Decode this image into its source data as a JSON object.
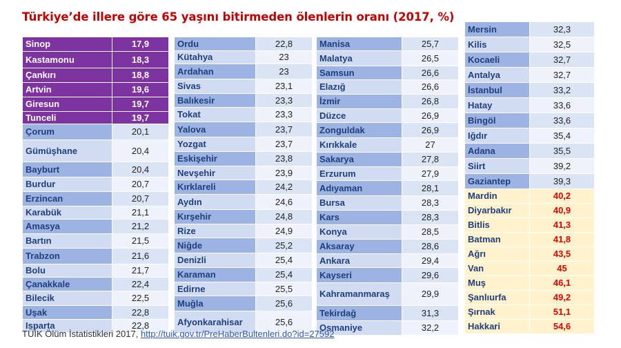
{
  "title": "Türkiye’de illere göre 65 yaşını bitirmeden ölenlerin oranı (2017, %)",
  "source": {
    "prefix": "TÜİK Ölüm İstatistikleri 2017,",
    "link": "http://tuik.gov.tr/PreHaberBultenleri.do?id=27592"
  },
  "colors": {
    "lowest_highlight": "#7d33a0",
    "highest_highlight": "#fff2cc",
    "highest_value_text": "#e00000",
    "name_cell": "#9db3e1",
    "title": "#c00000"
  },
  "columns": [
    {
      "rows": [
        {
          "name": "Sinop",
          "value": "17,9",
          "group": "low"
        },
        {
          "name": "Kastamonu",
          "value": "18,3",
          "group": "low"
        },
        {
          "name": "Çankırı",
          "value": "18,8",
          "group": "low"
        },
        {
          "name": "Artvin",
          "value": "19,6",
          "group": "low"
        },
        {
          "name": "Giresun",
          "value": "19,7",
          "group": "low"
        },
        {
          "name": "Tunceli",
          "value": "19,7",
          "group": "low"
        },
        {
          "name": "Çorum",
          "value": "20,1",
          "group": "mid"
        },
        {
          "name": "Gümüşhane",
          "value": "20,4",
          "group": "mid"
        },
        {
          "name": "Bayburt",
          "value": "20,4",
          "group": "mid"
        },
        {
          "name": "Burdur",
          "value": "20,7",
          "group": "mid"
        },
        {
          "name": "Erzincan",
          "value": "20,7",
          "group": "mid"
        },
        {
          "name": "Karabük",
          "value": "21,1",
          "group": "mid"
        },
        {
          "name": "Amasya",
          "value": "21,2",
          "group": "mid"
        },
        {
          "name": "Bartın",
          "value": "21,5",
          "group": "mid"
        },
        {
          "name": "Trabzon",
          "value": "21,6",
          "group": "mid"
        },
        {
          "name": "Bolu",
          "value": "21,7",
          "group": "mid"
        },
        {
          "name": "Çanakkale",
          "value": "22,4",
          "group": "mid"
        },
        {
          "name": "Bilecik",
          "value": "22,5",
          "group": "mid"
        },
        {
          "name": "Uşak",
          "value": "22,8",
          "group": "mid"
        },
        {
          "name": "Isparta",
          "value": "22,8",
          "group": "mid"
        }
      ]
    },
    {
      "rows": [
        {
          "name": "Ordu",
          "value": "22,8",
          "group": "mid"
        },
        {
          "name": "Kütahya",
          "value": "23",
          "group": "mid"
        },
        {
          "name": "Ardahan",
          "value": "23",
          "group": "mid"
        },
        {
          "name": "Sivas",
          "value": "23,1",
          "group": "mid"
        },
        {
          "name": "Balıkesir",
          "value": "23,3",
          "group": "mid"
        },
        {
          "name": "Tokat",
          "value": "23,3",
          "group": "mid"
        },
        {
          "name": "Yalova",
          "value": "23,7",
          "group": "mid"
        },
        {
          "name": "Yozgat",
          "value": "23,7",
          "group": "mid"
        },
        {
          "name": "Eskişehir",
          "value": "23,8",
          "group": "mid"
        },
        {
          "name": "Nevşehir",
          "value": "23,9",
          "group": "mid"
        },
        {
          "name": "Kırklareli",
          "value": "24,2",
          "group": "mid"
        },
        {
          "name": "Aydın",
          "value": "24,6",
          "group": "mid"
        },
        {
          "name": "Kırşehir",
          "value": "24,8",
          "group": "mid"
        },
        {
          "name": "Rize",
          "value": "24,9",
          "group": "mid"
        },
        {
          "name": "Niğde",
          "value": "25,2",
          "group": "mid"
        },
        {
          "name": "Denizli",
          "value": "25,4",
          "group": "mid"
        },
        {
          "name": "Karaman",
          "value": "25,4",
          "group": "mid"
        },
        {
          "name": "Edirne",
          "value": "25,5",
          "group": "mid"
        },
        {
          "name": "Muğla",
          "value": "25,6",
          "group": "mid"
        },
        {
          "name": "Afyonkarahisar",
          "value": "25,6",
          "group": "mid"
        }
      ]
    },
    {
      "rows": [
        {
          "name": "Manisa",
          "value": "25,7",
          "group": "mid"
        },
        {
          "name": "Malatya",
          "value": "26,5",
          "group": "mid"
        },
        {
          "name": "Samsun",
          "value": "26,6",
          "group": "mid"
        },
        {
          "name": "Elazığ",
          "value": "26,6",
          "group": "mid"
        },
        {
          "name": "İzmir",
          "value": "26,8",
          "group": "mid"
        },
        {
          "name": "Düzce",
          "value": "26,9",
          "group": "mid"
        },
        {
          "name": "Zonguldak",
          "value": "26,9",
          "group": "mid"
        },
        {
          "name": "Kırıkkale",
          "value": "27",
          "group": "mid"
        },
        {
          "name": "Sakarya",
          "value": "27,8",
          "group": "mid"
        },
        {
          "name": "Erzurum",
          "value": "27,9",
          "group": "mid"
        },
        {
          "name": "Adıyaman",
          "value": "28,1",
          "group": "mid"
        },
        {
          "name": "Bursa",
          "value": "28,3",
          "group": "mid"
        },
        {
          "name": "Kars",
          "value": "28,3",
          "group": "mid"
        },
        {
          "name": "Konya",
          "value": "28,5",
          "group": "mid"
        },
        {
          "name": "Aksaray",
          "value": "28,6",
          "group": "mid"
        },
        {
          "name": "Ankara",
          "value": "29,4",
          "group": "mid"
        },
        {
          "name": "Kayseri",
          "value": "29,6",
          "group": "mid"
        },
        {
          "name": "Kahramanmaraş",
          "value": "29,9",
          "group": "mid"
        },
        {
          "name": "Tekirdağ",
          "value": "31,3",
          "group": "mid"
        },
        {
          "name": "Osmaniye",
          "value": "32,2",
          "group": "mid"
        }
      ]
    },
    {
      "rows": [
        {
          "name": "Mersin",
          "value": "32,3",
          "group": "mid"
        },
        {
          "name": "Kilis",
          "value": "32,5",
          "group": "mid"
        },
        {
          "name": "Kocaeli",
          "value": "32,7",
          "group": "mid"
        },
        {
          "name": "Antalya",
          "value": "32,7",
          "group": "mid"
        },
        {
          "name": "İstanbul",
          "value": "33,2",
          "group": "mid"
        },
        {
          "name": "Hatay",
          "value": "33,6",
          "group": "mid"
        },
        {
          "name": "Bingöl",
          "value": "33,6",
          "group": "mid"
        },
        {
          "name": "Iğdır",
          "value": "35,4",
          "group": "mid"
        },
        {
          "name": "Adana",
          "value": "35,5",
          "group": "mid"
        },
        {
          "name": "Siirt",
          "value": "39,2",
          "group": "mid"
        },
        {
          "name": "Gaziantep",
          "value": "39,3",
          "group": "mid"
        },
        {
          "name": "Mardin",
          "value": "40,2",
          "group": "high"
        },
        {
          "name": "Diyarbakır",
          "value": "40,9",
          "group": "high"
        },
        {
          "name": "Bitlis",
          "value": "41,3",
          "group": "high"
        },
        {
          "name": "Batman",
          "value": "41,8",
          "group": "high"
        },
        {
          "name": "Ağrı",
          "value": "43,5",
          "group": "high"
        },
        {
          "name": "Van",
          "value": "45",
          "group": "high"
        },
        {
          "name": "Muş",
          "value": "46,1",
          "group": "high"
        },
        {
          "name": "Şanlıurfa",
          "value": "49,2",
          "group": "high"
        },
        {
          "name": "Şırnak",
          "value": "51,1",
          "group": "high"
        },
        {
          "name": "Hakkari",
          "value": "54,6",
          "group": "high"
        }
      ]
    }
  ]
}
